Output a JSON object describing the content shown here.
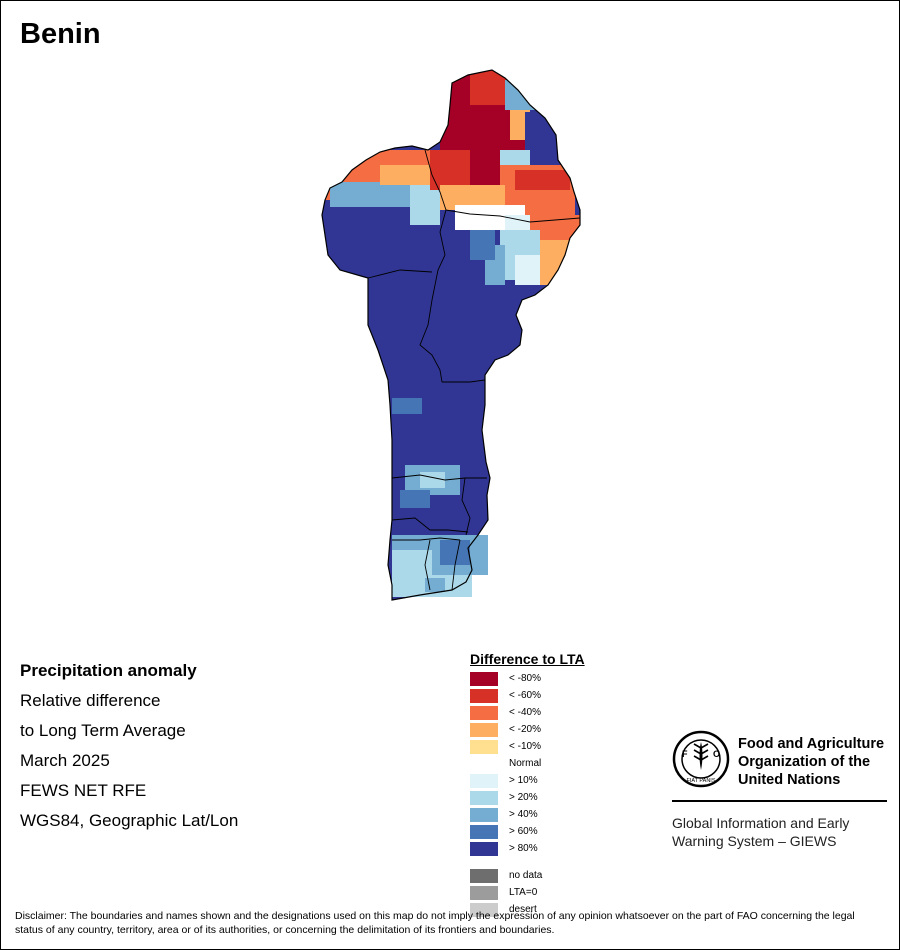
{
  "title": "Benin",
  "info": {
    "heading": "Precipitation anomaly",
    "lines": [
      "Relative difference",
      "to Long Term Average",
      "March 2025",
      "FEWS NET RFE",
      "WGS84, Geographic Lat/Lon"
    ]
  },
  "legend": {
    "title": "Difference to LTA",
    "classes": [
      {
        "label": "< -80%",
        "color": "#a50026"
      },
      {
        "label": "< -60%",
        "color": "#d73027"
      },
      {
        "label": "< -40%",
        "color": "#f46d43"
      },
      {
        "label": "< -20%",
        "color": "#fdae61"
      },
      {
        "label": "< -10%",
        "color": "#fee090"
      },
      {
        "label": "Normal",
        "color": "#ffffff"
      },
      {
        "label": "> 10%",
        "color": "#e0f3f8"
      },
      {
        "label": "> 20%",
        "color": "#abd9e9"
      },
      {
        "label": "> 40%",
        "color": "#74add1"
      },
      {
        "label": "> 60%",
        "color": "#4575b4"
      },
      {
        "label": "> 80%",
        "color": "#313695"
      }
    ],
    "extra": [
      {
        "label": "no data",
        "color": "#6e6e6e"
      },
      {
        "label": "LTA=0",
        "color": "#9c9c9c"
      },
      {
        "label": "desert",
        "color": "#cccccc"
      }
    ]
  },
  "org": {
    "logo_text": "FAO",
    "logo_motto": "FIAT PANIS",
    "name_lines": [
      "Food and Agriculture",
      "Organization of the",
      "United Nations"
    ],
    "system_lines": [
      "Global Information and Early",
      "Warning System – GIEWS"
    ]
  },
  "disclaimer": "Disclaimer: The boundaries and names shown and the designations used on this map do not imply the expression of any opinion whatsoever on the part of FAO concerning the legal status of any country, territory, area or of its authorities, or concerning the delimitation of its frontiers and boundaries."
}
